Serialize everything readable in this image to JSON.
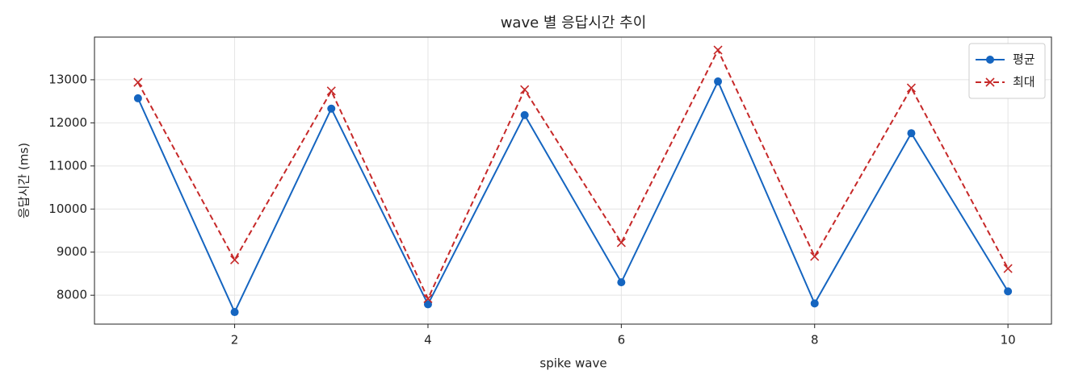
{
  "chart_data": {
    "type": "line",
    "title": "wave 별 응답시간 추이",
    "x_label": "spike wave",
    "y_label": "응답시간 (ms)",
    "x": [
      1,
      2,
      3,
      4,
      5,
      6,
      7,
      8,
      9,
      10
    ],
    "series": [
      {
        "name": "평균",
        "color": "#1565c0",
        "linestyle": "solid",
        "marker": "circle",
        "values": [
          12570,
          7610,
          12330,
          7790,
          12180,
          8300,
          12960,
          7810,
          11760,
          8090
        ]
      },
      {
        "name": "최대",
        "color": "#c62828",
        "linestyle": "dashed",
        "marker": "x",
        "values": [
          12940,
          8820,
          12740,
          7920,
          12770,
          9220,
          13690,
          8900,
          12810,
          8620
        ]
      }
    ],
    "xlim": [
      0.55,
      10.45
    ],
    "ylim": [
      7330,
      13990
    ],
    "xticks": [
      2,
      4,
      6,
      8,
      10
    ],
    "yticks": [
      8000,
      9000,
      10000,
      11000,
      12000,
      13000
    ],
    "grid": true,
    "legend": "upper right"
  }
}
